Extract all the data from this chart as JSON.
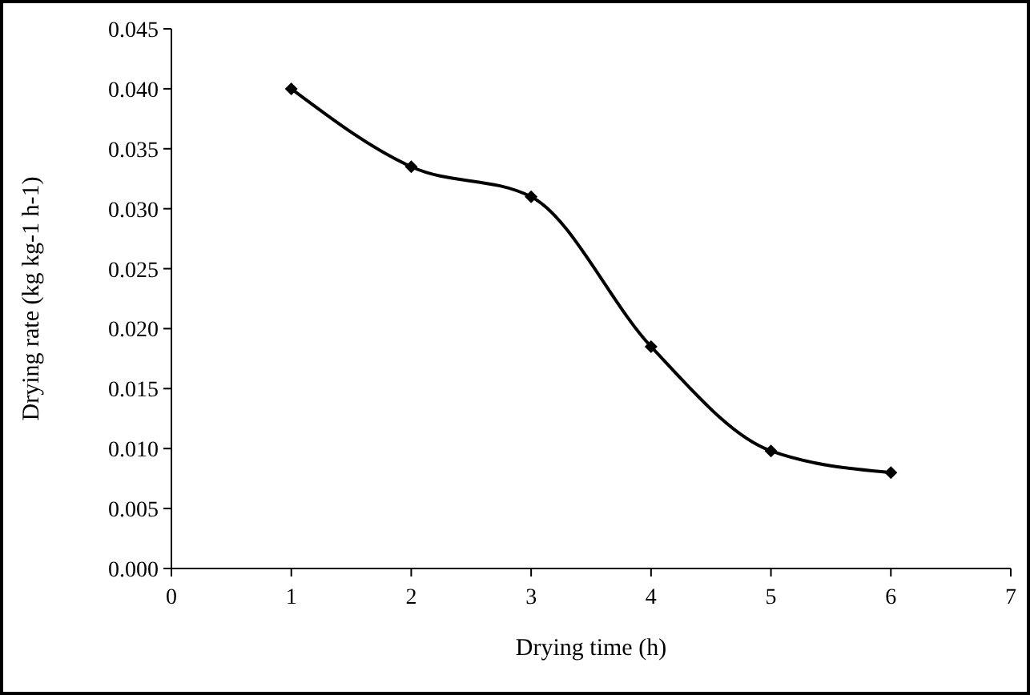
{
  "chart_data": {
    "type": "line",
    "xlabel": "Drying time (h)",
    "ylabel": "Drying rate (kg kg-1 h-1)",
    "x": [
      1,
      2,
      3,
      4,
      5,
      6
    ],
    "series": [
      {
        "color": "#000000",
        "values": [
          0.04,
          0.0335,
          0.031,
          0.0185,
          0.0098,
          0.008
        ]
      }
    ],
    "xlim": [
      0,
      7
    ],
    "xticks": [
      0,
      1,
      2,
      3,
      4,
      5,
      6,
      7
    ],
    "ylim": [
      0,
      0.045
    ],
    "yticks": [
      {
        "value": 0,
        "label": "0.000"
      },
      {
        "value": 0.005,
        "label": "0.005"
      },
      {
        "value": 0.01,
        "label": "0.010"
      },
      {
        "value": 0.015,
        "label": "0.015"
      },
      {
        "value": 0.02,
        "label": "0.020"
      },
      {
        "value": 0.025,
        "label": "0.025"
      },
      {
        "value": 0.03,
        "label": "0.030"
      },
      {
        "value": 0.035,
        "label": "0.035"
      },
      {
        "value": 0.04,
        "label": "0.040"
      },
      {
        "value": 0.045,
        "label": "0.045"
      }
    ],
    "marker": "diamond",
    "line_style": "solid"
  }
}
